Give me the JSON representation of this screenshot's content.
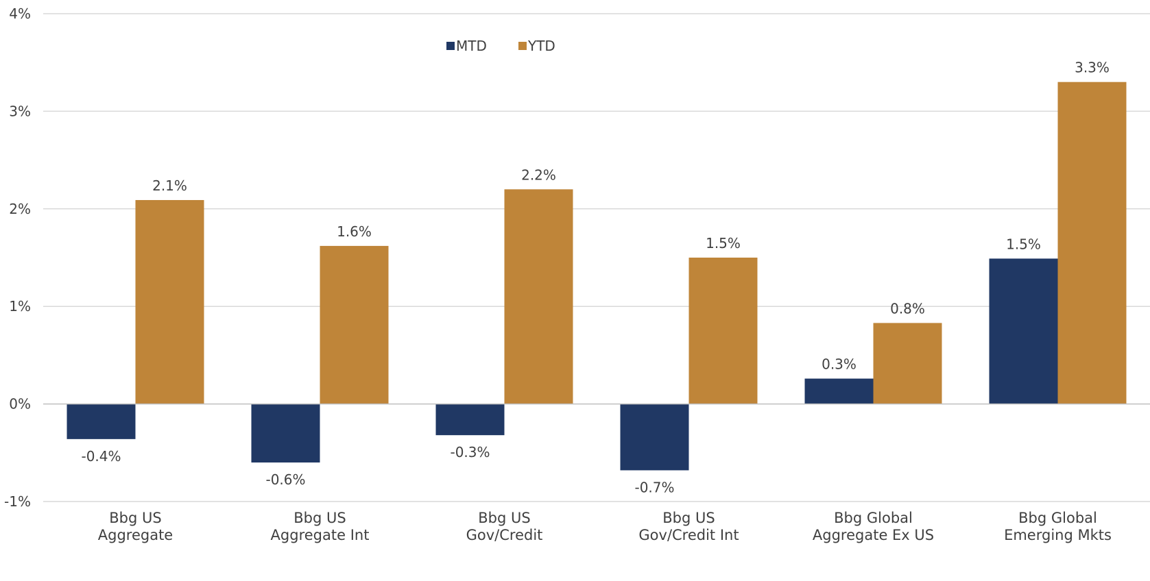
{
  "chart_data": {
    "type": "bar",
    "categories": [
      [
        "Bbg US",
        "Aggregate"
      ],
      [
        "Bbg US",
        "Aggregate Int"
      ],
      [
        "Bbg US",
        "Gov/Credit"
      ],
      [
        "Bbg US",
        "Gov/Credit Int"
      ],
      [
        "Bbg Global",
        "Aggregate Ex US"
      ],
      [
        "Bbg Global",
        "Emerging Mkts"
      ]
    ],
    "series": [
      {
        "name": "MTD",
        "color": "#203864",
        "values": [
          -0.36,
          -0.6,
          -0.32,
          -0.68,
          0.26,
          1.49
        ],
        "labels": [
          "-0.4%",
          "-0.6%",
          "-0.3%",
          "-0.7%",
          "0.3%",
          "1.5%"
        ]
      },
      {
        "name": "YTD",
        "color": "#BF8539",
        "values": [
          2.09,
          1.62,
          2.2,
          1.5,
          0.83,
          3.3
        ],
        "labels": [
          "2.1%",
          "1.6%",
          "2.2%",
          "1.5%",
          "0.8%",
          "3.3%"
        ]
      }
    ],
    "ylim": [
      -1,
      4
    ],
    "yticks": [
      -1,
      0,
      1,
      2,
      3,
      4
    ],
    "ytick_labels": [
      "-1%",
      "0%",
      "1%",
      "2%",
      "3%",
      "4%"
    ],
    "grid": true,
    "legend_position": "top-center",
    "title": "",
    "xlabel": "",
    "ylabel": ""
  }
}
